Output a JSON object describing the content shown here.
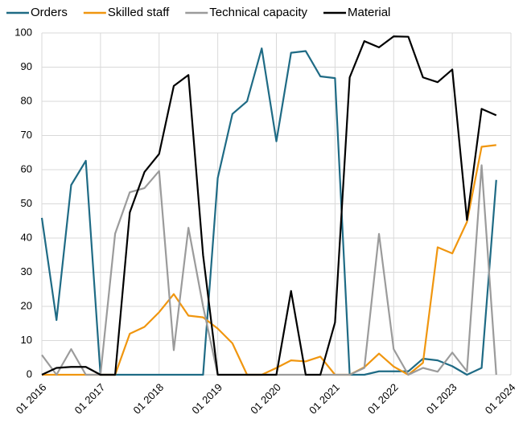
{
  "chart_data": {
    "type": "line",
    "x": [
      2016,
      2016.25,
      2016.5,
      2016.75,
      2017,
      2017.25,
      2017.5,
      2017.75,
      2018,
      2018.25,
      2018.5,
      2018.75,
      2019,
      2019.25,
      2019.5,
      2019.75,
      2020,
      2020.25,
      2020.5,
      2020.75,
      2021,
      2021.25,
      2021.5,
      2021.75,
      2022,
      2022.25,
      2022.5,
      2022.75,
      2023,
      2023.25,
      2023.5,
      2023.75
    ],
    "series": [
      {
        "name": "Orders",
        "color": "#1f6b85",
        "values": [
          45.9,
          16,
          55.5,
          62.6,
          0,
          0,
          0,
          0,
          0,
          0,
          0,
          0,
          57.6,
          76.3,
          80,
          95.5,
          68.3,
          94.2,
          94.7,
          87.3,
          86.8,
          0,
          0,
          1,
          1,
          1,
          4.7,
          4.2,
          2.5,
          0,
          2,
          57
        ]
      },
      {
        "name": "Skilled staff",
        "color": "#f0960f",
        "values": [
          0,
          0,
          0,
          0,
          0,
          0,
          12,
          14,
          18.3,
          23.6,
          17.3,
          16.8,
          13.5,
          9.2,
          0,
          0,
          2,
          4.2,
          3.9,
          5.3,
          0,
          0,
          2.2,
          6.2,
          2.4,
          0,
          3.5,
          37.3,
          35.5,
          44.7,
          66.7,
          67.2
        ]
      },
      {
        "name": "Technical capacity",
        "color": "#9b9b9b",
        "values": [
          5.8,
          0,
          7.5,
          0,
          0,
          41.3,
          53.4,
          54.6,
          59.6,
          7.2,
          43,
          20,
          0,
          0,
          0,
          0,
          0,
          0,
          0,
          0,
          0,
          0,
          2,
          41.2,
          7.5,
          0,
          2,
          0.9,
          6.5,
          1,
          61.3,
          0
        ]
      },
      {
        "name": "Material",
        "color": "#000000",
        "values": [
          0,
          2,
          2.3,
          2.3,
          0,
          0,
          47.5,
          59.3,
          64.6,
          84.5,
          87.7,
          35,
          0,
          0,
          0,
          0,
          0,
          24.5,
          0,
          0,
          15.3,
          87,
          97.6,
          95.8,
          99,
          98.9,
          87,
          85.6,
          89.3,
          45.3,
          77.8,
          75.9
        ]
      }
    ],
    "xlim": [
      2016,
      2024
    ],
    "xticks": [
      {
        "value": 2016,
        "label": "01 2016"
      },
      {
        "value": 2017,
        "label": "01 2017"
      },
      {
        "value": 2018,
        "label": "01 2018"
      },
      {
        "value": 2019,
        "label": "01 2019"
      },
      {
        "value": 2020,
        "label": "01 2020"
      },
      {
        "value": 2021,
        "label": "01 2021"
      },
      {
        "value": 2022,
        "label": "01 2022"
      },
      {
        "value": 2023,
        "label": "01 2023"
      },
      {
        "value": 2024,
        "label": "01 2024"
      }
    ],
    "ylim": [
      0,
      100
    ],
    "yticks": [
      0,
      10,
      20,
      30,
      40,
      50,
      60,
      70,
      80,
      90,
      100
    ],
    "grid": true,
    "legend": "top"
  }
}
